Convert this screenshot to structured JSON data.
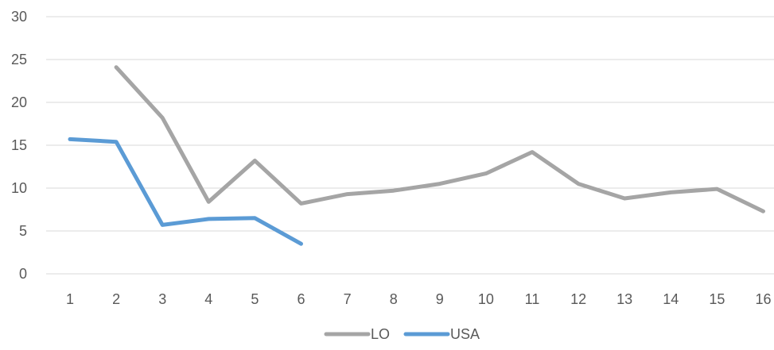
{
  "chart_data": {
    "type": "line",
    "title": "",
    "xlabel": "",
    "ylabel": "",
    "categories": [
      "1",
      "2",
      "3",
      "4",
      "5",
      "6",
      "7",
      "8",
      "9",
      "10",
      "11",
      "12",
      "13",
      "14",
      "15",
      "16"
    ],
    "ylim": [
      0,
      30
    ],
    "yticks": [
      0,
      5,
      10,
      15,
      20,
      25,
      30
    ],
    "grid": true,
    "legend": "bottom",
    "series": [
      {
        "name": "LO",
        "color": "#a5a5a5",
        "values": [
          null,
          24.1,
          18.2,
          8.4,
          13.2,
          8.2,
          9.3,
          9.7,
          10.5,
          11.7,
          14.2,
          10.5,
          8.8,
          9.5,
          9.9,
          7.3
        ]
      },
      {
        "name": "USA",
        "color": "#5b9bd5",
        "values": [
          15.7,
          15.4,
          5.7,
          6.4,
          6.5,
          3.5,
          null,
          null,
          null,
          null,
          null,
          null,
          null,
          null,
          null,
          null
        ]
      }
    ]
  }
}
